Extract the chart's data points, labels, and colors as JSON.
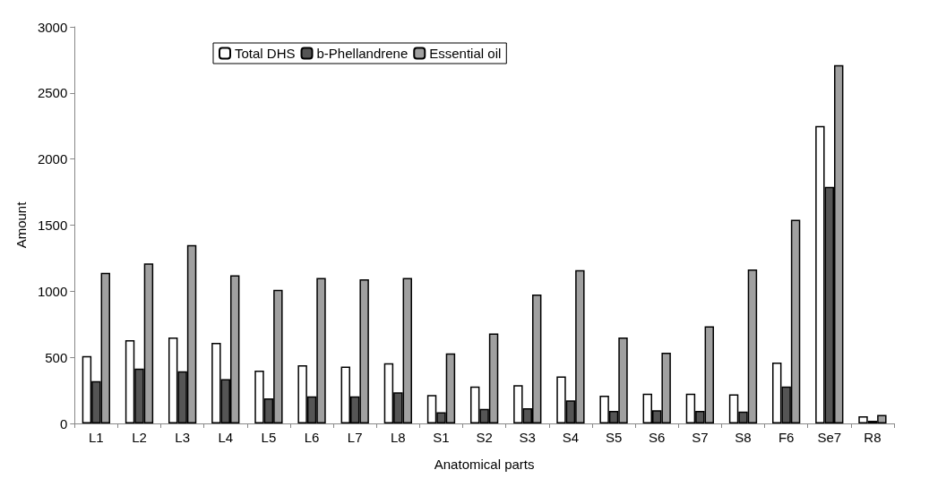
{
  "chart_data": {
    "type": "bar",
    "xlabel": "Anatomical parts",
    "ylabel": "Amount",
    "categories": [
      "L1",
      "L2",
      "L3",
      "L4",
      "L5",
      "L6",
      "L7",
      "L8",
      "S1",
      "S2",
      "S3",
      "S4",
      "S5",
      "S6",
      "S7",
      "S8",
      "F6",
      "Se7",
      "R8"
    ],
    "series": [
      {
        "name": "Total DHS",
        "color": "#ffffff",
        "values": [
          510,
          630,
          650,
          610,
          400,
          440,
          430,
          455,
          215,
          280,
          290,
          355,
          210,
          225,
          225,
          220,
          460,
          2250,
          55
        ]
      },
      {
        "name": "b-Phellandrene",
        "color": "#555555",
        "values": [
          320,
          415,
          395,
          335,
          190,
          205,
          205,
          235,
          85,
          110,
          115,
          175,
          95,
          100,
          95,
          90,
          280,
          1790,
          20
        ]
      },
      {
        "name": "Essential oil",
        "color": "#a0a0a0",
        "values": [
          1140,
          1210,
          1350,
          1120,
          1010,
          1100,
          1090,
          1100,
          530,
          680,
          975,
          1160,
          650,
          535,
          735,
          1165,
          1540,
          2710,
          65
        ]
      }
    ],
    "ylim": [
      0,
      3000
    ],
    "yticks": [
      0,
      500,
      1000,
      1500,
      2000,
      2500,
      3000
    ],
    "grid": false,
    "legend": "top left"
  }
}
